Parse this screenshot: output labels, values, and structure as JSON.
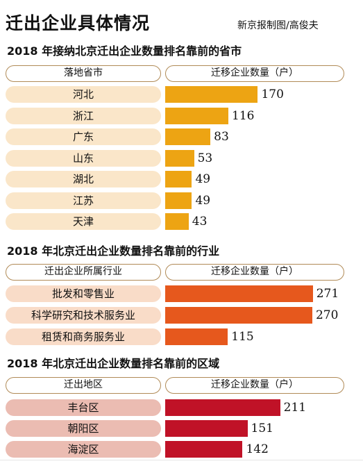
{
  "header": {
    "title": "迁出企业具体情况",
    "credit": "新京报制图/高俊夫"
  },
  "chart_data": [
    {
      "type": "bar",
      "orientation": "horizontal",
      "title": "2018 年接纳北京迁出企业数量排名靠前的省市",
      "category_header": "落地省市",
      "value_header": "迁移企业数量（户）",
      "categories": [
        "河北",
        "浙江",
        "广东",
        "山东",
        "湖北",
        "江苏",
        "天津"
      ],
      "values": [
        170,
        116,
        83,
        53,
        49,
        49,
        43
      ],
      "bar_color": "#eda413",
      "label_bg": "#fae6c9"
    },
    {
      "type": "bar",
      "orientation": "horizontal",
      "title": "2018 年北京迁出企业数量排名靠前的行业",
      "category_header": "迁出企业所属行业",
      "value_header": "迁移企业数量（户）",
      "categories": [
        "批发和零售业",
        "科学研究和技术服务业",
        "租赁和商务服务业"
      ],
      "values": [
        271,
        270,
        115
      ],
      "bar_color": "#e6581d",
      "label_bg": "#f9dcc8"
    },
    {
      "type": "bar",
      "orientation": "horizontal",
      "title": "2018 年北京迁出企业数量排名靠前的区域",
      "category_header": "迁出地区",
      "value_header": "迁移企业数量（户）",
      "categories": [
        "丰台区",
        "朝阳区",
        "海淀区"
      ],
      "values": [
        211,
        151,
        142
      ],
      "bar_color": "#c01227",
      "label_bg": "#ebbcb2"
    }
  ]
}
